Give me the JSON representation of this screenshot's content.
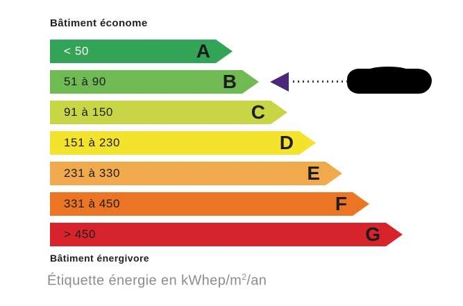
{
  "labels": {
    "top": "Bâtiment économe",
    "bottom": "Bâtiment énergivore"
  },
  "caption": {
    "prefix": "Étiquette énergie en kWhep/m",
    "superscript": "2",
    "suffix": "/an"
  },
  "classes": [
    {
      "letter": "A",
      "range": "< 50",
      "color": "#33a357",
      "range_text_color": "#ffffff"
    },
    {
      "letter": "B",
      "range": "51 à 90",
      "color": "#6fba53",
      "range_text_color": "#1d1d1d",
      "selected": true
    },
    {
      "letter": "C",
      "range": "91 à 150",
      "color": "#c8d545",
      "range_text_color": "#1d1d1d"
    },
    {
      "letter": "D",
      "range": "151 à 230",
      "color": "#f4e32c",
      "range_text_color": "#1d1d1d"
    },
    {
      "letter": "E",
      "range": "231 à 330",
      "color": "#f0a94d",
      "range_text_color": "#1d1d1d"
    },
    {
      "letter": "F",
      "range": "331 à 450",
      "color": "#ec7425",
      "range_text_color": "#1d1d1d"
    },
    {
      "letter": "G",
      "range": "> 450",
      "color": "#d7232b",
      "range_text_color": "#1d1d1d"
    }
  ],
  "marker": {
    "points_to_class": "B",
    "arrow_color": "#4b2878",
    "dotted_line_color": "#3a3145",
    "redaction_color": "#000000"
  }
}
